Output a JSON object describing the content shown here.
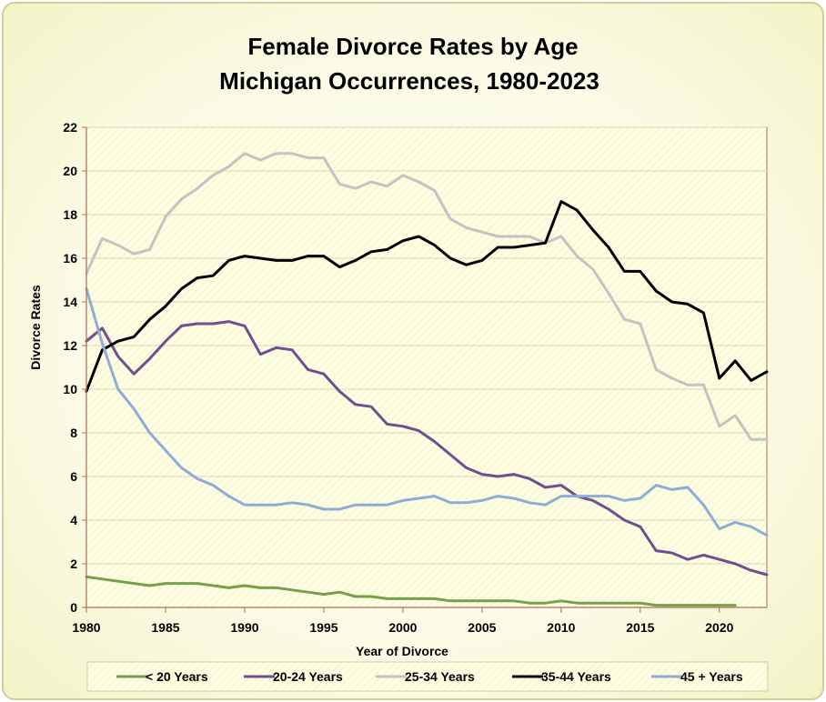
{
  "chart_data": {
    "type": "line",
    "title_line1": "Female Divorce Rates by Age",
    "title_line2": "Michigan Occurrences, 1980-2023",
    "xlabel": "Year of Divorce",
    "ylabel": "Divorce Rates",
    "xlim": [
      1980,
      2023
    ],
    "ylim": [
      0,
      22
    ],
    "x_ticks": [
      1980,
      1985,
      1990,
      1995,
      2000,
      2005,
      2010,
      2015,
      2020
    ],
    "y_ticks": [
      0,
      2,
      4,
      6,
      8,
      10,
      12,
      14,
      16,
      18,
      20,
      22
    ],
    "legend_position": "bottom",
    "series": [
      {
        "name": "< 20 Years",
        "color": "#77a04a",
        "x": [
          1980,
          1981,
          1982,
          1983,
          1984,
          1985,
          1986,
          1987,
          1988,
          1989,
          1990,
          1991,
          1992,
          1993,
          1994,
          1995,
          1996,
          1997,
          1998,
          1999,
          2000,
          2001,
          2002,
          2003,
          2004,
          2005,
          2006,
          2007,
          2008,
          2009,
          2010,
          2011,
          2012,
          2013,
          2014,
          2015,
          2016,
          2017,
          2018,
          2019,
          2020,
          2021
        ],
        "values": [
          1.4,
          1.3,
          1.2,
          1.1,
          1.0,
          1.1,
          1.1,
          1.1,
          1.0,
          0.9,
          1.0,
          0.9,
          0.9,
          0.8,
          0.7,
          0.6,
          0.7,
          0.5,
          0.5,
          0.4,
          0.4,
          0.4,
          0.4,
          0.3,
          0.3,
          0.3,
          0.3,
          0.3,
          0.2,
          0.2,
          0.3,
          0.2,
          0.2,
          0.2,
          0.2,
          0.2,
          0.1,
          0.1,
          0.1,
          0.1,
          0.1,
          0.1
        ]
      },
      {
        "name": "20-24 Years",
        "color": "#6f4f8f",
        "x": [
          1980,
          1981,
          1982,
          1983,
          1984,
          1985,
          1986,
          1987,
          1988,
          1989,
          1990,
          1991,
          1992,
          1993,
          1994,
          1995,
          1996,
          1997,
          1998,
          1999,
          2000,
          2001,
          2002,
          2003,
          2004,
          2005,
          2006,
          2007,
          2008,
          2009,
          2010,
          2011,
          2012,
          2013,
          2014,
          2015,
          2016,
          2017,
          2018,
          2019,
          2020,
          2021,
          2022,
          2023
        ],
        "values": [
          12.2,
          12.8,
          11.5,
          10.7,
          11.4,
          12.2,
          12.9,
          13.0,
          13.0,
          13.1,
          12.9,
          11.6,
          11.9,
          11.8,
          10.9,
          10.7,
          9.9,
          9.3,
          9.2,
          8.4,
          8.3,
          8.1,
          7.6,
          7.0,
          6.4,
          6.1,
          6.0,
          6.1,
          5.9,
          5.5,
          5.6,
          5.1,
          4.9,
          4.5,
          4.0,
          3.7,
          2.6,
          2.5,
          2.2,
          2.4,
          2.2,
          2.0,
          1.7,
          1.5
        ]
      },
      {
        "name": "25-34 Years",
        "color": "#c3c3c3",
        "x": [
          1980,
          1981,
          1982,
          1983,
          1984,
          1985,
          1986,
          1987,
          1988,
          1989,
          1990,
          1991,
          1992,
          1993,
          1994,
          1995,
          1996,
          1997,
          1998,
          1999,
          2000,
          2001,
          2002,
          2003,
          2004,
          2005,
          2006,
          2007,
          2008,
          2009,
          2010,
          2011,
          2012,
          2013,
          2014,
          2015,
          2016,
          2017,
          2018,
          2019,
          2020,
          2021,
          2022,
          2023
        ],
        "values": [
          15.3,
          16.9,
          16.6,
          16.2,
          16.4,
          17.9,
          18.7,
          19.2,
          19.8,
          20.2,
          20.8,
          20.5,
          20.8,
          20.8,
          20.6,
          20.6,
          19.4,
          19.2,
          19.5,
          19.3,
          19.8,
          19.5,
          19.1,
          17.8,
          17.4,
          17.2,
          17.0,
          17.0,
          17.0,
          16.7,
          17.0,
          16.1,
          15.5,
          14.4,
          13.2,
          13.0,
          10.9,
          10.5,
          10.2,
          10.2,
          8.3,
          8.8,
          7.7,
          7.7
        ]
      },
      {
        "name": "35-44 Years",
        "color": "#000000",
        "x": [
          1980,
          1981,
          1982,
          1983,
          1984,
          1985,
          1986,
          1987,
          1988,
          1989,
          1990,
          1991,
          1992,
          1993,
          1994,
          1995,
          1996,
          1997,
          1998,
          1999,
          2000,
          2001,
          2002,
          2003,
          2004,
          2005,
          2006,
          2007,
          2008,
          2009,
          2010,
          2011,
          2012,
          2013,
          2014,
          2015,
          2016,
          2017,
          2018,
          2019,
          2020,
          2021,
          2022,
          2023
        ],
        "values": [
          9.9,
          11.8,
          12.2,
          12.4,
          13.2,
          13.8,
          14.6,
          15.1,
          15.2,
          15.9,
          16.1,
          16.0,
          15.9,
          15.9,
          16.1,
          16.1,
          15.6,
          15.9,
          16.3,
          16.4,
          16.8,
          17.0,
          16.6,
          16.0,
          15.7,
          15.9,
          16.5,
          16.5,
          16.6,
          16.7,
          18.6,
          18.2,
          17.3,
          16.5,
          15.4,
          15.4,
          14.5,
          14.0,
          13.9,
          13.5,
          10.5,
          11.3,
          10.4,
          10.8
        ]
      },
      {
        "name": "45 + Years",
        "color": "#8fabd6",
        "x": [
          1980,
          1981,
          1982,
          1983,
          1984,
          1985,
          1986,
          1987,
          1988,
          1989,
          1990,
          1991,
          1992,
          1993,
          1994,
          1995,
          1996,
          1997,
          1998,
          1999,
          2000,
          2001,
          2002,
          2003,
          2004,
          2005,
          2006,
          2007,
          2008,
          2009,
          2010,
          2011,
          2012,
          2013,
          2014,
          2015,
          2016,
          2017,
          2018,
          2019,
          2020,
          2021,
          2022,
          2023
        ],
        "values": [
          14.6,
          12.1,
          10.0,
          9.1,
          8.0,
          7.2,
          6.4,
          5.9,
          5.6,
          5.1,
          4.7,
          4.7,
          4.7,
          4.8,
          4.7,
          4.5,
          4.5,
          4.7,
          4.7,
          4.7,
          4.9,
          5.0,
          5.1,
          4.8,
          4.8,
          4.9,
          5.1,
          5.0,
          4.8,
          4.7,
          5.1,
          5.1,
          5.1,
          5.1,
          4.9,
          5.0,
          5.6,
          5.4,
          5.5,
          4.7,
          3.6,
          3.9,
          3.7,
          3.3
        ]
      }
    ]
  }
}
